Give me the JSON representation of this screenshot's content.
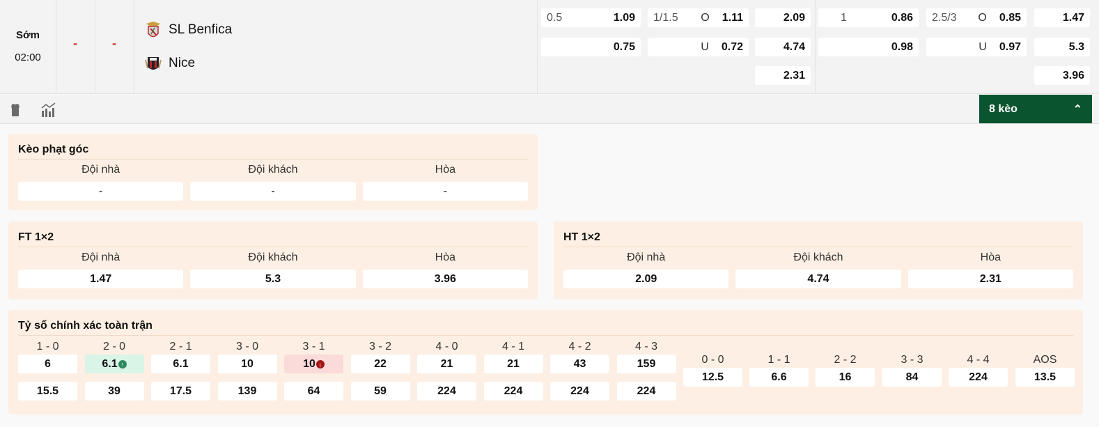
{
  "match": {
    "status": "Sớm",
    "time": "02:00",
    "score_ft": "-",
    "score_ht": "-",
    "home": {
      "name": "SL Benfica",
      "crest": "benfica-crest"
    },
    "away": {
      "name": "Nice",
      "crest": "nice-crest"
    }
  },
  "odds": {
    "ft_handicap": {
      "line": "0.5",
      "home": "1.09",
      "away": "0.75"
    },
    "ft_overunder": {
      "line": "1/1.5",
      "over_label": "O",
      "over": "1.11",
      "under_label": "U",
      "under": "0.72"
    },
    "ht_1x2": {
      "home": "2.09",
      "away": "4.74",
      "draw": "2.31"
    },
    "ht_handicap": {
      "line": "1",
      "home": "0.86",
      "away": "0.98"
    },
    "ht_overunder": {
      "line": "2.5/3",
      "over_label": "O",
      "over": "0.85",
      "under_label": "U",
      "under": "0.97"
    },
    "ft_1x2": {
      "home": "1.47",
      "away": "5.3",
      "draw": "3.96"
    }
  },
  "toolbar": {
    "icons": [
      "shirt-icon",
      "stats-chart-icon"
    ],
    "more_label": "8 kèo",
    "accent": "#0b5430"
  },
  "corner": {
    "title": "Kèo phạt góc",
    "cols": [
      {
        "label": "Đội nhà",
        "value": "-"
      },
      {
        "label": "Đội khách",
        "value": "-"
      },
      {
        "label": "Hòa",
        "value": "-"
      }
    ]
  },
  "ft12": {
    "title": "FT 1×2",
    "cols": [
      {
        "label": "Đội nhà",
        "value": "1.47"
      },
      {
        "label": "Đội khách",
        "value": "5.3"
      },
      {
        "label": "Hòa",
        "value": "3.96"
      }
    ]
  },
  "ht12": {
    "title": "HT 1×2",
    "cols": [
      {
        "label": "Đội nhà",
        "value": "2.09"
      },
      {
        "label": "Đội khách",
        "value": "4.74"
      },
      {
        "label": "Hòa",
        "value": "2.31"
      }
    ]
  },
  "correct_score": {
    "title": "Tỷ số chính xác toàn trận",
    "home_side": [
      {
        "score": "1 - 0",
        "home": "6",
        "away": "15.5"
      },
      {
        "score": "2 - 0",
        "home": "6.1",
        "away": "39",
        "trend": "up"
      },
      {
        "score": "2 - 1",
        "home": "6.1",
        "away": "17.5"
      },
      {
        "score": "3 - 0",
        "home": "10",
        "away": "139"
      },
      {
        "score": "3 - 1",
        "home": "10",
        "away": "64",
        "trend": "down"
      },
      {
        "score": "3 - 2",
        "home": "22",
        "away": "59"
      },
      {
        "score": "4 - 0",
        "home": "21",
        "away": "224"
      },
      {
        "score": "4 - 1",
        "home": "21",
        "away": "224"
      },
      {
        "score": "4 - 2",
        "home": "43",
        "away": "224"
      },
      {
        "score": "4 - 3",
        "home": "159",
        "away": "224"
      }
    ],
    "draws": [
      {
        "score": "0 - 0",
        "value": "12.5"
      },
      {
        "score": "1 - 1",
        "value": "6.6"
      },
      {
        "score": "2 - 2",
        "value": "16"
      },
      {
        "score": "3 - 3",
        "value": "84"
      },
      {
        "score": "4 - 4",
        "value": "224"
      },
      {
        "score": "AOS",
        "value": "13.5"
      }
    ],
    "trend_colors": {
      "up": "#2e8a5e",
      "down": "#a3161a"
    }
  }
}
